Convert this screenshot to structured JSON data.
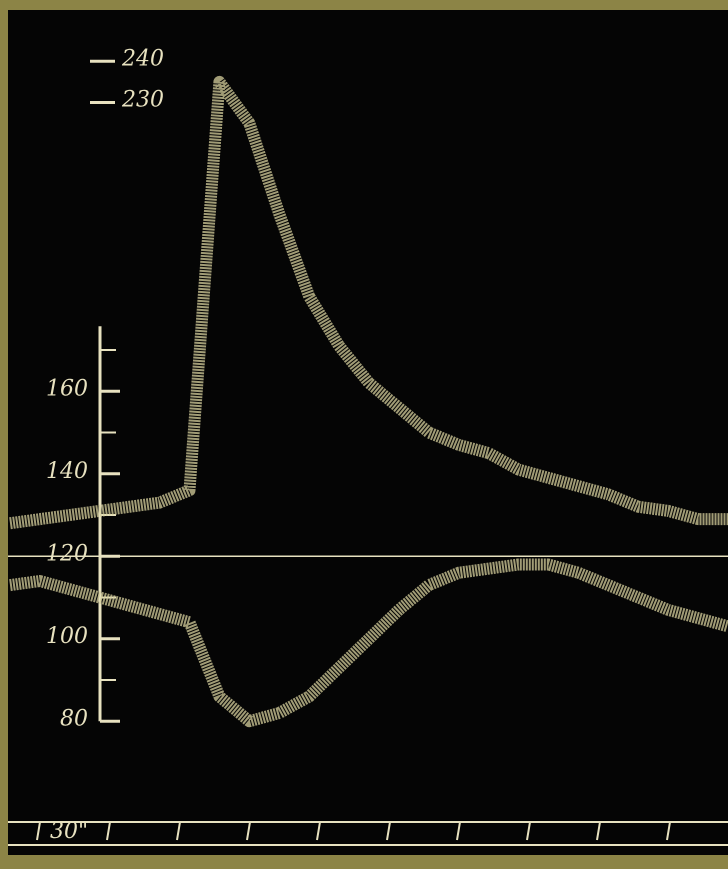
{
  "chart_data": {
    "type": "line",
    "categories": [
      null,
      null,
      null,
      null,
      null,
      null,
      null,
      null,
      null,
      null,
      null,
      null,
      null,
      null,
      null,
      null,
      null,
      null,
      null,
      null,
      null,
      null,
      null,
      null,
      null
    ],
    "series": [
      {
        "color": "#d6cf9c",
        "values": [
          128,
          129,
          130,
          131,
          132,
          133,
          136,
          235,
          225,
          203,
          183,
          171,
          162,
          156,
          150,
          147,
          145,
          141,
          139,
          137,
          135,
          132,
          131,
          129,
          129
        ]
      },
      {
        "color": "#d6cf9c",
        "values": [
          113,
          114,
          112,
          110,
          108,
          106,
          104,
          86,
          80,
          82,
          86,
          93,
          100,
          107,
          113,
          116,
          117,
          118,
          118,
          116,
          113,
          110,
          107,
          105,
          103
        ]
      }
    ],
    "ylim": [
      50,
      250
    ],
    "yticks": [
      80,
      100,
      120,
      140,
      160
    ],
    "upper_ticks": [
      240,
      230
    ],
    "reference_line": 120,
    "time_label": "30\""
  }
}
